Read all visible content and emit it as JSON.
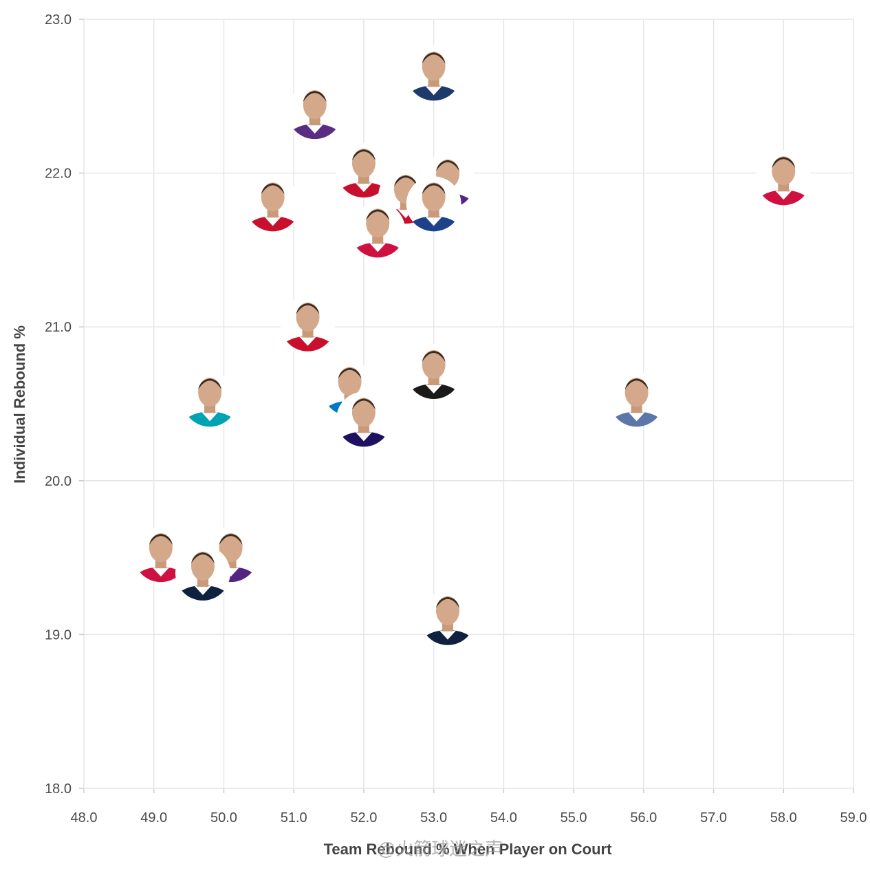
{
  "chart_data": {
    "type": "scatter",
    "title": "",
    "xlabel": "Team Rebound % When Player on Court",
    "ylabel": "Individual Rebound %",
    "xlim": [
      48.0,
      59.0
    ],
    "ylim": [
      18.0,
      23.0
    ],
    "x_ticks": [
      "48.0",
      "49.0",
      "50.0",
      "51.0",
      "52.0",
      "53.0",
      "54.0",
      "55.0",
      "56.0",
      "57.0",
      "58.0",
      "59.0"
    ],
    "y_ticks": [
      "18.0",
      "19.0",
      "20.0",
      "21.0",
      "22.0",
      "23.0"
    ],
    "grid": true,
    "marker": "player headshot",
    "points": [
      {
        "x": 53.0,
        "y": 22.65,
        "jersey": "#1d3a6b"
      },
      {
        "x": 51.3,
        "y": 22.4,
        "jersey": "#5a2d82"
      },
      {
        "x": 52.0,
        "y": 22.02,
        "jersey": "#c8102e"
      },
      {
        "x": 53.2,
        "y": 21.95,
        "jersey": "#552583"
      },
      {
        "x": 58.0,
        "y": 21.97,
        "jersey": "#ce1141"
      },
      {
        "x": 50.7,
        "y": 21.8,
        "jersey": "#c8102e"
      },
      {
        "x": 52.6,
        "y": 21.85,
        "jersey": "#c8102e"
      },
      {
        "x": 53.0,
        "y": 21.8,
        "jersey": "#1d428a"
      },
      {
        "x": 52.2,
        "y": 21.63,
        "jersey": "#ce1141"
      },
      {
        "x": 51.2,
        "y": 21.02,
        "jersey": "#c8102e"
      },
      {
        "x": 53.0,
        "y": 20.71,
        "jersey": "#1a1a1a"
      },
      {
        "x": 51.8,
        "y": 20.6,
        "jersey": "#007ac1"
      },
      {
        "x": 49.8,
        "y": 20.53,
        "jersey": "#00a3b4"
      },
      {
        "x": 55.9,
        "y": 20.53,
        "jersey": "#5d76a9"
      },
      {
        "x": 52.0,
        "y": 20.4,
        "jersey": "#1d1160"
      },
      {
        "x": 49.1,
        "y": 19.52,
        "jersey": "#ce1141"
      },
      {
        "x": 50.1,
        "y": 19.52,
        "jersey": "#552583"
      },
      {
        "x": 49.7,
        "y": 19.4,
        "jersey": "#0e2240"
      },
      {
        "x": 53.2,
        "y": 19.11,
        "jersey": "#0e2240"
      }
    ]
  },
  "watermark": "@火箭球迷之声"
}
